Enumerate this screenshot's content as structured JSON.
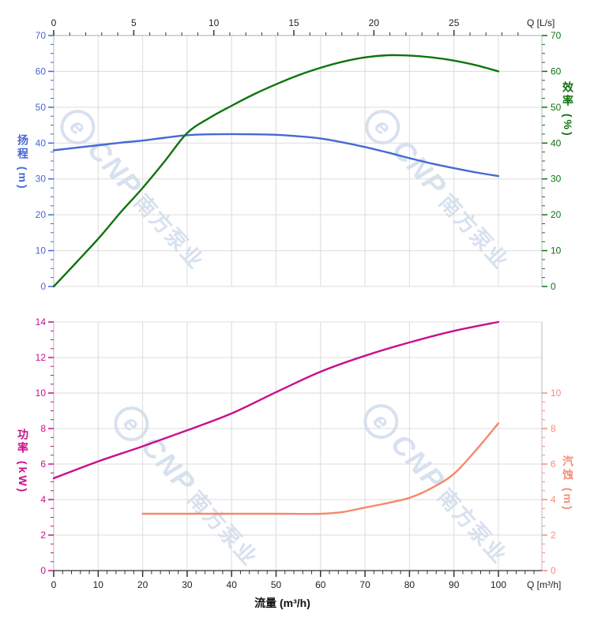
{
  "watermark": {
    "logo": "e",
    "brand": "CNP",
    "name": "南方泵业",
    "color": "#d7e1ef"
  },
  "chart_data": {
    "type": "line",
    "title": "",
    "description": "Pump performance curves: head & efficiency (top panel), shaft power & NPSH (bottom panel) versus flow rate",
    "grid": true,
    "legend": false,
    "x_bottom_axis": {
      "label": "Q [m³/h]",
      "title": "流量 (m³/h)",
      "min": 0,
      "max": 110,
      "major_ticks": [
        0,
        10,
        20,
        30,
        40,
        50,
        60,
        70,
        80,
        90,
        100
      ],
      "minor_step": 2
    },
    "x_top_axis": {
      "label": "Q [L/s]",
      "min": 0,
      "max": 30.5,
      "major_ticks": [
        0,
        5,
        10,
        15,
        20,
        25
      ],
      "minor_step": 1,
      "conversion": "1 L/s = 3.6 m³/h"
    },
    "panels": [
      {
        "name": "head-efficiency",
        "left_axis": {
          "title": "扬程 (m)",
          "color": "#4569d4",
          "min": 0,
          "max": 70,
          "major_ticks": [
            0,
            10,
            20,
            30,
            40,
            50,
            60,
            70
          ],
          "minor_step": 2.5
        },
        "right_axis": {
          "title": "效率 (%)",
          "color": "#0e740e",
          "min": 0,
          "max": 70,
          "major_ticks": [
            0,
            10,
            20,
            30,
            40,
            50,
            60,
            70
          ],
          "minor_step": 2.5
        },
        "series": [
          {
            "key": "head",
            "name": "扬程",
            "yaxis": "left",
            "color": "#4569d4",
            "x": [
              0,
              5,
              10,
              15,
              20,
              25,
              30,
              35,
              40,
              45,
              50,
              55,
              60,
              65,
              70,
              75,
              80,
              85,
              90,
              95,
              100
            ],
            "y": [
              38,
              38.7,
              39.4,
              40.1,
              40.7,
              41.5,
              42.2,
              42.45,
              42.5,
              42.45,
              42.3,
              41.9,
              41.3,
              40.2,
              38.9,
              37.4,
              35.8,
              34.3,
              33,
              31.8,
              30.8
            ]
          },
          {
            "key": "efficiency",
            "name": "效率",
            "yaxis": "right",
            "color": "#0e740e",
            "x": [
              0,
              5,
              10,
              15,
              20,
              25,
              30,
              35,
              40,
              45,
              50,
              55,
              60,
              65,
              70,
              75,
              80,
              85,
              90,
              95,
              100
            ],
            "y": [
              0,
              6.6,
              13.3,
              20.6,
              27.5,
              35,
              42.8,
              47,
              50.4,
              53.6,
              56.4,
              58.9,
              61,
              62.7,
              63.9,
              64.5,
              64.4,
              63.9,
              63,
              61.7,
              60
            ]
          }
        ]
      },
      {
        "name": "power-npsh",
        "left_axis": {
          "title": "功率 (kW)",
          "color": "#c90f8b",
          "min": 0,
          "max": 14,
          "major_ticks": [
            0,
            2,
            4,
            6,
            8,
            10,
            12,
            14
          ],
          "minor_step": 0.5
        },
        "right_axis": {
          "title": "汽蚀 (m)",
          "color": "#f58d77",
          "min": 0,
          "max": 14,
          "major_ticks": [
            0,
            2,
            4,
            6,
            8,
            10
          ],
          "minor_step": 0.5,
          "tick_max": 10
        },
        "series": [
          {
            "key": "power",
            "name": "功率",
            "yaxis": "left",
            "color": "#c90f8b",
            "x": [
              0,
              10,
              20,
              30,
              40,
              50,
              60,
              70,
              80,
              90,
              100
            ],
            "y": [
              5.2,
              6.15,
              7.0,
              7.9,
              8.85,
              10.05,
              11.2,
              12.1,
              12.85,
              13.5,
              14
            ]
          },
          {
            "key": "npsh",
            "name": "汽蚀",
            "yaxis": "right",
            "color": "#f5886c",
            "x": [
              20,
              30,
              40,
              50,
              60,
              65,
              70,
              75,
              80,
              85,
              90,
              95,
              100
            ],
            "y": [
              3.2,
              3.2,
              3.2,
              3.2,
              3.2,
              3.3,
              3.55,
              3.8,
              4.1,
              4.65,
              5.45,
              6.8,
              8.3
            ]
          }
        ]
      }
    ]
  }
}
